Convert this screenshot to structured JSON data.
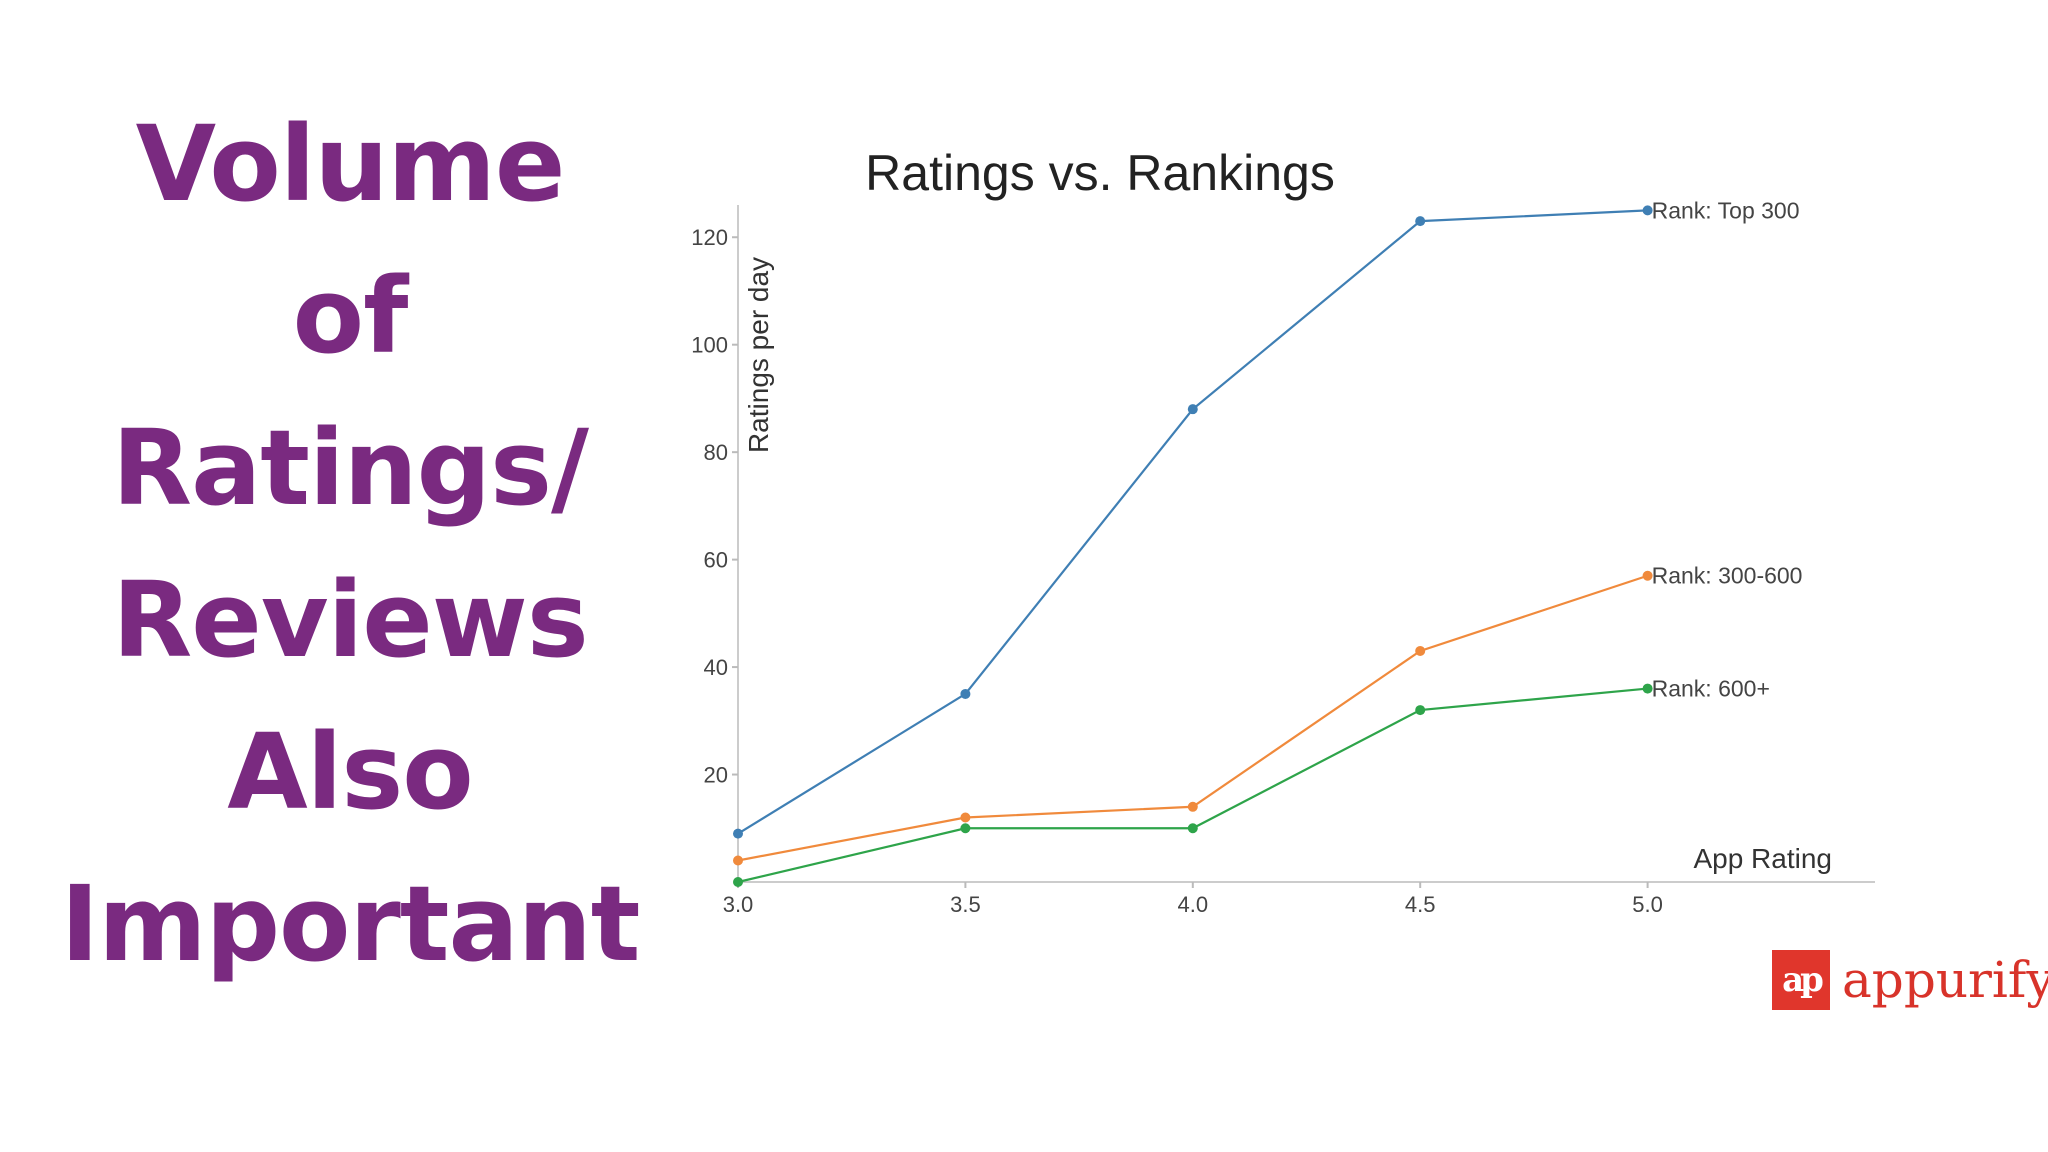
{
  "slide": {
    "title_lines": [
      "Volume",
      "of",
      "Ratings/",
      "Reviews",
      "Also",
      "Important"
    ]
  },
  "logo": {
    "mark_text": "ap",
    "brand_name": "appurify",
    "color": "#d8332a"
  },
  "chart_data": {
    "type": "line",
    "title": "Ratings vs. Rankings",
    "xlabel": "App Rating",
    "ylabel": "Ratings per day",
    "x": [
      3.0,
      3.5,
      4.0,
      4.5,
      5.0
    ],
    "x_tick_labels": [
      "3.0",
      "3.5",
      "4.0",
      "4.5",
      "5.0"
    ],
    "xlim": [
      3.0,
      5.5
    ],
    "ylim": [
      0,
      126
    ],
    "y_ticks": [
      20,
      40,
      60,
      80,
      100,
      120
    ],
    "grid": false,
    "legend": "inline at end of each line",
    "series": [
      {
        "name": "Rank: Top 300",
        "color": "#3f7fb4",
        "values": [
          9,
          35,
          88,
          123,
          125
        ]
      },
      {
        "name": "Rank: 300-600",
        "color": "#f08a3c",
        "values": [
          4,
          12,
          14,
          43,
          57
        ]
      },
      {
        "name": "Rank: 600+",
        "color": "#2ea44a",
        "values": [
          0,
          10,
          10,
          32,
          36
        ]
      }
    ]
  }
}
